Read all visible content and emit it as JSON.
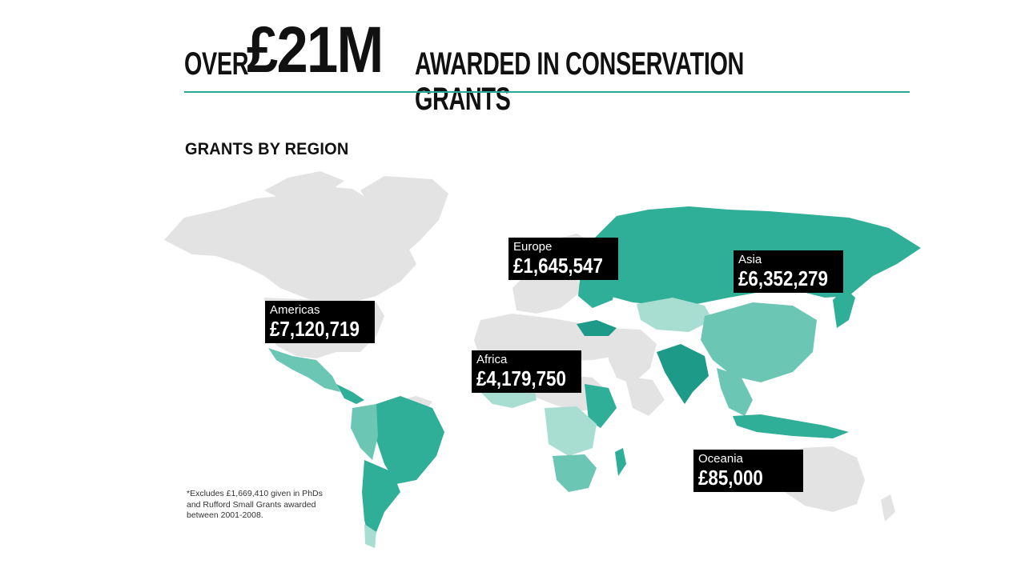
{
  "headline": {
    "prefix": "OVER",
    "amount": "£21M",
    "suffix": "AWARDED IN CONSERVATION GRANTS"
  },
  "section_title": "GRANTS BY REGION",
  "colors": {
    "accent_rule": "#2aa99a",
    "land_default": "#e3e3e3",
    "shade_dark": "#1e9a88",
    "shade_mid": "#2fae98",
    "shade_light": "#6cc6b4",
    "shade_pale": "#a8ddd2",
    "label_bg": "#000000",
    "label_text": "#ffffff"
  },
  "regions": [
    {
      "name": "Europe",
      "amount": "£1,645,547",
      "value": 1645547
    },
    {
      "name": "Asia",
      "amount": "£6,352,279",
      "value": 6352279
    },
    {
      "name": "Americas",
      "amount": "£7,120,719",
      "value": 7120719
    },
    {
      "name": "Africa",
      "amount": "£4,179,750",
      "value": 4179750
    },
    {
      "name": "Oceania",
      "amount": "£85,000",
      "value": 85000
    }
  ],
  "footnote": "*Excludes £1,669,410 given in PhDs and Rufford Small Grants awarded between 2001-2008."
}
